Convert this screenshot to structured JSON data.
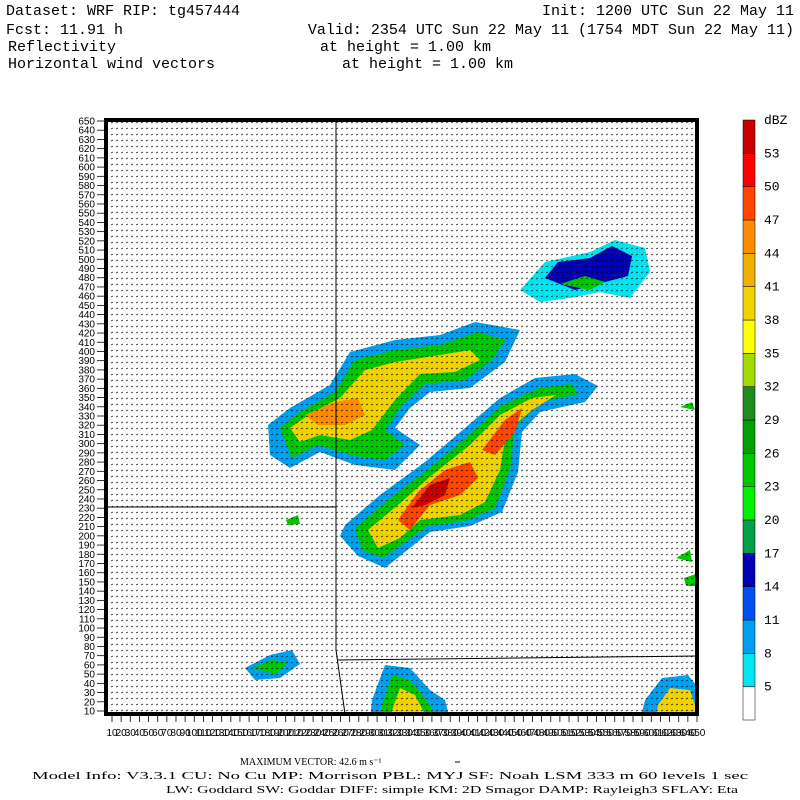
{
  "header": {
    "dataset": "Dataset: WRF  RIP: tg457444",
    "init": "Init: 1200 UTC Sun 22 May 11",
    "fcst": "Fcst:   11.91 h",
    "valid": "Valid: 2354 UTC Sun 22 May 11 (1754 MDT Sun 22 May 11)",
    "field1": "Reflectivity",
    "field1_level": "at height =  1.00 km",
    "field2": "Horizontal wind vectors",
    "field2_level": "at height =  1.00 km"
  },
  "map": {
    "yticks": [
      10,
      20,
      30,
      40,
      50,
      60,
      70,
      80,
      90,
      100,
      110,
      120,
      130,
      140,
      150,
      160,
      170,
      180,
      190,
      200,
      210,
      220,
      230,
      240,
      250,
      260,
      270,
      280,
      290,
      300,
      310,
      320,
      330,
      340,
      350,
      360,
      370,
      380,
      390,
      400,
      410,
      420,
      430,
      440,
      450,
      460,
      470,
      480,
      490,
      500,
      510,
      520,
      530,
      540,
      550,
      560,
      570,
      580,
      590,
      600,
      610,
      620,
      630,
      640,
      650
    ],
    "xticks": [
      10,
      20,
      30,
      40,
      50,
      60,
      70,
      80,
      90,
      100,
      110,
      120,
      130,
      140,
      150,
      160,
      170,
      180,
      190,
      200,
      210,
      220,
      230,
      240,
      250,
      260,
      270,
      280,
      290,
      300,
      310,
      320,
      330,
      340,
      350,
      360,
      370,
      380,
      390,
      400,
      410,
      420,
      430,
      440,
      450,
      460,
      470,
      480,
      490,
      500,
      510,
      520,
      530,
      540,
      550,
      560,
      570,
      580,
      590,
      600,
      610,
      620,
      630,
      640,
      650
    ]
  },
  "colorbar": {
    "unit": "dBZ",
    "labels": [
      5,
      8,
      11,
      14,
      17,
      20,
      23,
      26,
      29,
      32,
      35,
      38,
      41,
      44,
      47,
      50,
      53
    ],
    "colors": [
      "#ffffff",
      "#00e6f0",
      "#00a0f0",
      "#0050f0",
      "#0000b4",
      "#00a046",
      "#00f000",
      "#00c800",
      "#00a000",
      "#1e8c1e",
      "#a0dc00",
      "#ffff00",
      "#f0d200",
      "#f0b000",
      "#ff8c00",
      "#ff4600",
      "#ff0000",
      "#c80000"
    ]
  },
  "footer": {
    "max_vector": "MAXIMUM VECTOR:  42.6 m s⁻¹",
    "model_info": "Model Info: V3.3.1    CU: No Cu    MP: Morrison     PBL: MYJ      SF: Noah LSM     333 m    60 levels     1 sec",
    "physics": "LW: Goddard SW: Goddar DIFF: simple KM: 2D Smagor DAMP: Rayleigh3  SFLAY: Eta"
  }
}
